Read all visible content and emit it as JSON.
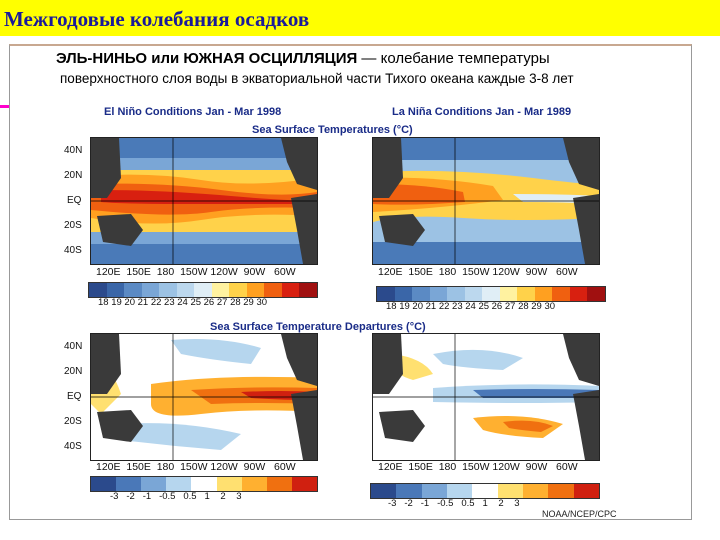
{
  "slide": {
    "title": "Межгодовые колебания осадков",
    "heading_bold": "ЭЛЬ-НИНЬО или ЮЖНАЯ ОСЦИЛЛЯЦИЯ",
    "heading_rest": " — колебание температуры",
    "heading_line2": "поверхностного слоя воды в экваториальной части Тихого океана каждые 3-8 лет"
  },
  "figure": {
    "left_title": "El Niño Conditions Jan - Mar 1998",
    "right_title": "La Niña Conditions Jan - Mar 1989",
    "sst_title": "Sea Surface Temperatures (°C)",
    "dep_title": "Sea Surface Temperature Departures (°C)",
    "lat_labels": [
      "40N",
      "20N",
      "EQ",
      "20S",
      "40S"
    ],
    "lon_labels": "120E  150E  180  150W 120W  90W   60W",
    "sst_scale": "18 19 20 21 22 23 24 25 26 27 28 29 30",
    "dep_scale": "-3   -2   -1   -0.5   0.5   1    2    3",
    "credit": "NOAA/NCEP/CPC"
  },
  "colors": {
    "title_bar": "#ffff00",
    "title_text": "#1a1a9a",
    "bullet": "#ff00cc",
    "land": "#3a3a3a",
    "sst_scale_colors": [
      "#2b4a8c",
      "#3a66a8",
      "#5b8ac4",
      "#7aa6d6",
      "#9cc2e4",
      "#bcd8ee",
      "#e0eef6",
      "#fff2a0",
      "#ffd24a",
      "#ffa020",
      "#f06010",
      "#d82010",
      "#a01010"
    ],
    "dep_scale_colors": [
      "#2b4a8c",
      "#4a78b8",
      "#7aa6d6",
      "#b6d6ee",
      "#ffffff",
      "#ffe070",
      "#ffb030",
      "#f07010",
      "#d02010"
    ]
  }
}
